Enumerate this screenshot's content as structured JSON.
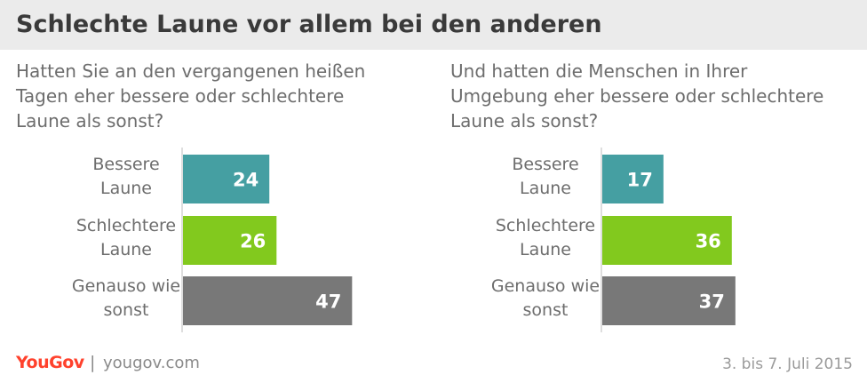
{
  "title": "Schlechte Laune vor allem bei den anderen",
  "footer": {
    "logo": "YouGov",
    "separator": "|",
    "url": "yougov.com",
    "date": "3. bis 7. Juli 2015"
  },
  "colors": {
    "bessere": "#459fa2",
    "schlechtere": "#82c91e",
    "genauso": "#787878"
  },
  "chart_data": [
    {
      "type": "bar",
      "orientation": "horizontal",
      "title": "Hatten Sie an den vergangenen heißen Tagen eher bessere oder schlechtere Laune als sonst?",
      "categories": [
        [
          "Bessere",
          "Laune"
        ],
        [
          "Schlechtere",
          "Laune"
        ],
        [
          "Genauso wie",
          "sonst"
        ]
      ],
      "values": [
        24,
        26,
        47
      ],
      "xlim": [
        0,
        100
      ],
      "grid": false,
      "legend": "none"
    },
    {
      "type": "bar",
      "orientation": "horizontal",
      "title": "Und hatten die Menschen in Ihrer Umgebung eher bessere oder schlechtere Laune als sonst?",
      "categories": [
        [
          "Bessere",
          "Laune"
        ],
        [
          "Schlechtere",
          "Laune"
        ],
        [
          "Genauso wie",
          "sonst"
        ]
      ],
      "values": [
        17,
        36,
        37
      ],
      "xlim": [
        0,
        100
      ],
      "grid": false,
      "legend": "none"
    }
  ]
}
